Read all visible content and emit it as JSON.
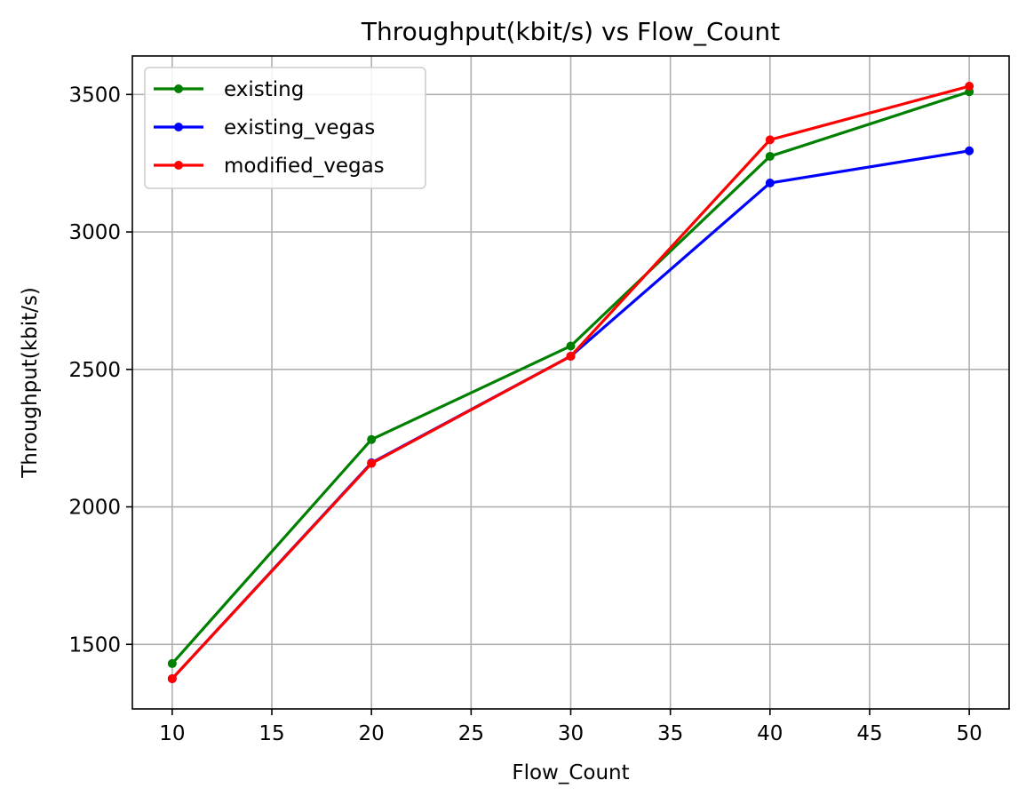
{
  "chart_data": {
    "type": "line",
    "title": "Throughput(kbit/s) vs Flow_Count",
    "xlabel": "Flow_Count",
    "ylabel": "Throughput(kbit/s)",
    "x": [
      10,
      20,
      30,
      40,
      50
    ],
    "xlim": [
      8,
      52
    ],
    "ylim": [
      1265,
      3640
    ],
    "xticks": [
      10,
      15,
      20,
      25,
      30,
      35,
      40,
      45,
      50
    ],
    "yticks": [
      1500,
      2000,
      2500,
      3000,
      3500
    ],
    "grid": true,
    "legend_position": "top-left",
    "series": [
      {
        "name": "existing",
        "color": "#008000",
        "values": [
          1430,
          2245,
          2585,
          3275,
          3510
        ]
      },
      {
        "name": "existing_vegas",
        "color": "#0000ff",
        "values": [
          1375,
          2160,
          2548,
          3178,
          3295
        ]
      },
      {
        "name": "modified_vegas",
        "color": "#ff0000",
        "values": [
          1375,
          2158,
          2548,
          3335,
          3530
        ]
      }
    ]
  }
}
